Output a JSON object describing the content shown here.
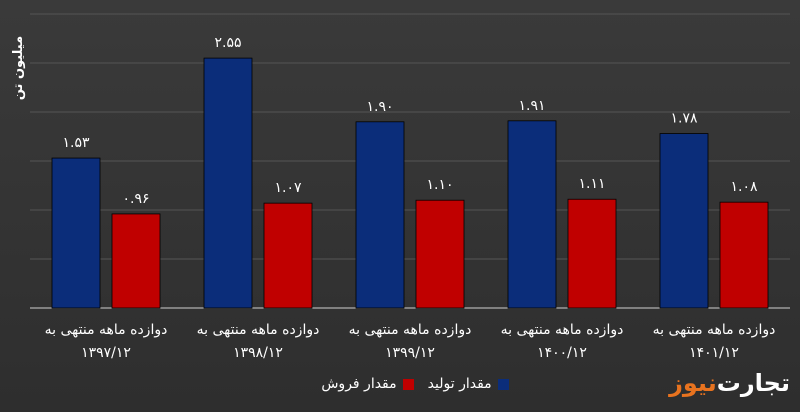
{
  "colors": {
    "production": "#0b2d7a",
    "sales": "#c00000",
    "text": "#ffffff",
    "grid": "#555555",
    "axis": "#cfcfcf"
  },
  "legend": {
    "production": "مقدار تولید",
    "sales": "مقدار فروش"
  },
  "logo": {
    "part1": "تجارت",
    "part2": "نیوز"
  },
  "chart_data": {
    "type": "bar",
    "title": "",
    "ylabel": "میلیون تن",
    "xlabel": "",
    "ylim": [
      0,
      3
    ],
    "grid": true,
    "legend_position": "bottom",
    "categories": [
      [
        "دوازده ماهه منتهی به",
        "۱۳۹۷/۱۲"
      ],
      [
        "دوازده ماهه منتهی به",
        "۱۳۹۸/۱۲"
      ],
      [
        "دوازده ماهه منتهی به",
        "۱۳۹۹/۱۲"
      ],
      [
        "دوازده ماهه منتهی به",
        "۱۴۰۰/۱۲"
      ],
      [
        "دوازده ماهه منتهی به",
        "۱۴۰۱/۱۲"
      ]
    ],
    "series": [
      {
        "name": "مقدار تولید",
        "values": [
          1.53,
          2.55,
          1.9,
          1.91,
          1.78
        ],
        "labels": [
          "۱.۵۳",
          "۲.۵۵",
          "۱.۹۰",
          "۱.۹۱",
          "۱.۷۸"
        ]
      },
      {
        "name": "مقدار فروش",
        "values": [
          0.96,
          1.07,
          1.1,
          1.11,
          1.08
        ],
        "labels": [
          "۰.۹۶",
          "۱.۰۷",
          "۱.۱۰",
          "۱.۱۱",
          "۱.۰۸"
        ]
      }
    ]
  }
}
